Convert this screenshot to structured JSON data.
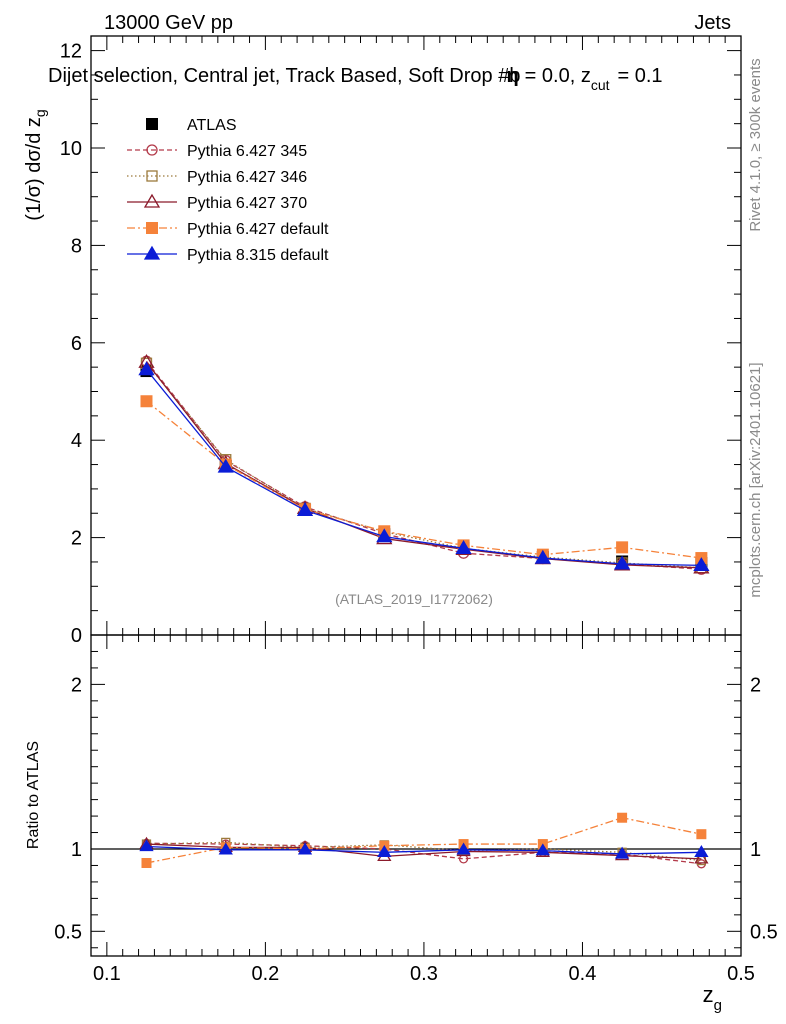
{
  "header": {
    "left": "13000 GeV pp",
    "right": "Jets"
  },
  "chart_data": {
    "type": "line",
    "title": "Dijet selection, Central jet, Track Based, Soft Drop #b",
    "title_suffix": "= 0.0, z",
    "title_sub": "cut",
    "title_end": "= 0.1",
    "beta_symbol": "η",
    "ylabel": "(1/σ) dσ/d z",
    "ylabel_sub": "g",
    "xlabel": "z",
    "xlabel_sub": "g",
    "ratio_ylabel": "Ratio to ATLAS",
    "xlim": [
      0.09,
      0.5
    ],
    "ylim": [
      0,
      12.3
    ],
    "ratio_ylim": [
      0.35,
      2.3
    ],
    "x_ticks": [
      0.1,
      0.2,
      0.3,
      0.4,
      0.5
    ],
    "x_tick_labels": [
      "0.1",
      "0.2",
      "0.3",
      "0.4",
      "0.5"
    ],
    "y_ticks": [
      0,
      2,
      4,
      6,
      8,
      10,
      12
    ],
    "y_tick_labels": [
      "0",
      "2",
      "4",
      "6",
      "8",
      "10",
      "12"
    ],
    "ratio_ticks": [
      0.5,
      1,
      2
    ],
    "ratio_tick_labels": [
      "0.5",
      "1",
      "2"
    ],
    "x": [
      0.125,
      0.175,
      0.225,
      0.275,
      0.325,
      0.375,
      0.425,
      0.475
    ],
    "series": [
      {
        "name": "ATLAS",
        "color": "#000000",
        "marker": "square-filled",
        "line": "none",
        "values": [
          5.42,
          3.47,
          2.57,
          2.07,
          1.79,
          1.6,
          1.51,
          1.48
        ]
      },
      {
        "name": "Pythia 6.427 345",
        "color": "#b33a4a",
        "marker": "circle-open",
        "line": "dashed",
        "values": [
          5.62,
          3.58,
          2.63,
          2.08,
          1.68,
          1.57,
          1.46,
          1.35
        ],
        "ratio": [
          1.035,
          1.03,
          1.02,
          1.0,
          0.94,
          0.98,
          0.97,
          0.91
        ]
      },
      {
        "name": "Pythia 6.427 346",
        "color": "#9c7a3c",
        "marker": "square-open",
        "line": "dotted",
        "values": [
          5.58,
          3.6,
          2.6,
          2.12,
          1.78,
          1.6,
          1.48,
          1.38
        ],
        "ratio": [
          1.03,
          1.04,
          1.01,
          1.025,
          0.99,
          1.0,
          0.98,
          0.93
        ]
      },
      {
        "name": "Pythia 6.427 370",
        "color": "#8b1a2b",
        "marker": "triangle-open",
        "line": "solid",
        "values": [
          5.6,
          3.52,
          2.6,
          1.98,
          1.76,
          1.57,
          1.44,
          1.38
        ],
        "ratio": [
          1.03,
          1.01,
          1.01,
          0.955,
          0.985,
          0.98,
          0.96,
          0.94
        ]
      },
      {
        "name": "Pythia 6.427 default",
        "color": "#f5823a",
        "marker": "square-filled",
        "line": "dashdot",
        "values": [
          4.8,
          3.5,
          2.58,
          2.13,
          1.84,
          1.65,
          1.8,
          1.58
        ],
        "ratio": [
          0.915,
          1.01,
          1.0,
          1.02,
          1.03,
          1.03,
          1.19,
          1.09
        ]
      },
      {
        "name": "Pythia 8.315 default",
        "color": "#0b1cd6",
        "marker": "triangle-filled",
        "line": "solid",
        "values": [
          5.45,
          3.45,
          2.56,
          2.02,
          1.78,
          1.58,
          1.46,
          1.43
        ],
        "ratio": [
          1.015,
          0.995,
          0.995,
          0.98,
          0.995,
          0.99,
          0.97,
          0.98
        ]
      }
    ],
    "legend_position": "top-left",
    "watermark": "(ATLAS_2019_I1772062)"
  },
  "side": {
    "rivet": "Rivet 4.1.0, ≥ 300k events",
    "mcplots": "mcplots.cern.ch [arXiv:2401.10621]"
  }
}
